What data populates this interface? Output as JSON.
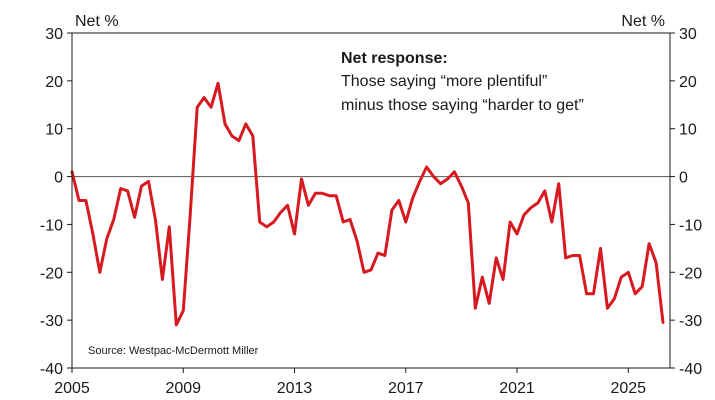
{
  "chart_data": {
    "type": "line",
    "unit_left": "Net %",
    "unit_right": "Net %",
    "annotation": {
      "title": "Net response:",
      "lines": [
        "Those saying “more plentiful”",
        "minus those saying “harder to get”"
      ]
    },
    "source": "Source: Westpac-McDermott Miller",
    "ylim": [
      -40,
      30
    ],
    "yticks": [
      30,
      20,
      10,
      0,
      -10,
      -20,
      -30,
      -40
    ],
    "xlim": [
      2005,
      2026.5
    ],
    "xticks": [
      2005,
      2009,
      2013,
      2017,
      2021,
      2025
    ],
    "zero_line": true,
    "series": [
      {
        "color": "#d71920",
        "points": [
          [
            2005.0,
            1
          ],
          [
            2005.25,
            -5
          ],
          [
            2005.5,
            -5
          ],
          [
            2005.75,
            -12
          ],
          [
            2006.0,
            -20
          ],
          [
            2006.25,
            -13
          ],
          [
            2006.5,
            -9
          ],
          [
            2006.75,
            -2.5
          ],
          [
            2007.0,
            -3
          ],
          [
            2007.25,
            -8.5
          ],
          [
            2007.5,
            -2
          ],
          [
            2007.75,
            -1
          ],
          [
            2008.0,
            -9
          ],
          [
            2008.25,
            -21.5
          ],
          [
            2008.5,
            -10.5
          ],
          [
            2008.75,
            -31
          ],
          [
            2009.0,
            -28
          ],
          [
            2009.25,
            -8
          ],
          [
            2009.5,
            14.5
          ],
          [
            2009.75,
            16.5
          ],
          [
            2010.0,
            14.5
          ],
          [
            2010.25,
            19.5
          ],
          [
            2010.5,
            11
          ],
          [
            2010.75,
            8.5
          ],
          [
            2011.0,
            7.5
          ],
          [
            2011.25,
            11
          ],
          [
            2011.5,
            8.5
          ],
          [
            2011.75,
            -9.5
          ],
          [
            2012.0,
            -10.5
          ],
          [
            2012.25,
            -9.5
          ],
          [
            2012.5,
            -7.5
          ],
          [
            2012.75,
            -6
          ],
          [
            2013.0,
            -12
          ],
          [
            2013.25,
            -0.5
          ],
          [
            2013.5,
            -6
          ],
          [
            2013.75,
            -3.5
          ],
          [
            2014.0,
            -3.5
          ],
          [
            2014.25,
            -4
          ],
          [
            2014.5,
            -4
          ],
          [
            2014.75,
            -9.5
          ],
          [
            2015.0,
            -9
          ],
          [
            2015.25,
            -13.5
          ],
          [
            2015.5,
            -20
          ],
          [
            2015.75,
            -19.5
          ],
          [
            2016.0,
            -16
          ],
          [
            2016.25,
            -16.5
          ],
          [
            2016.5,
            -7
          ],
          [
            2016.75,
            -5
          ],
          [
            2017.0,
            -9.5
          ],
          [
            2017.25,
            -4.5
          ],
          [
            2017.5,
            -1
          ],
          [
            2017.75,
            2
          ],
          [
            2018.0,
            0
          ],
          [
            2018.25,
            -1.5
          ],
          [
            2018.5,
            -0.5
          ],
          [
            2018.75,
            1
          ],
          [
            2019.0,
            -2
          ],
          [
            2019.25,
            -5.5
          ],
          [
            2019.5,
            -27.5
          ],
          [
            2019.75,
            -21
          ],
          [
            2020.0,
            -26.5
          ],
          [
            2020.25,
            -17
          ],
          [
            2020.5,
            -21.5
          ],
          [
            2020.75,
            -9.5
          ],
          [
            2021.0,
            -12
          ],
          [
            2021.25,
            -8
          ],
          [
            2021.5,
            -6.5
          ],
          [
            2021.75,
            -5.5
          ],
          [
            2022.0,
            -3
          ],
          [
            2022.25,
            -9.5
          ],
          [
            2022.5,
            -1.5
          ],
          [
            2022.75,
            -17
          ],
          [
            2023.0,
            -16.5
          ],
          [
            2023.25,
            -16.5
          ],
          [
            2023.5,
            -24.5
          ],
          [
            2023.75,
            -24.5
          ],
          [
            2024.0,
            -15
          ],
          [
            2024.25,
            -27.5
          ],
          [
            2024.5,
            -25.5
          ],
          [
            2024.75,
            -21
          ],
          [
            2025.0,
            -20
          ],
          [
            2025.25,
            -24.5
          ],
          [
            2025.5,
            -23
          ],
          [
            2025.75,
            -14
          ],
          [
            2026.0,
            -18
          ],
          [
            2026.25,
            -30.5
          ]
        ]
      }
    ]
  }
}
